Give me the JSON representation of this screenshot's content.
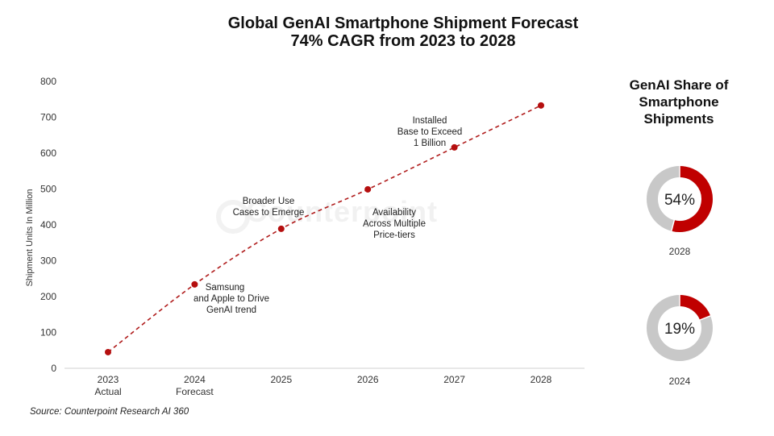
{
  "title_line1": "Global GenAI Smartphone Shipment Forecast",
  "title_line2": "74% CAGR from 2023 to 2028",
  "watermark": "Counterpoint",
  "source": "Source: Counterpoint Research AI 360",
  "colors": {
    "accent": "#c00000",
    "ring_bg": "#c8c8c8",
    "axis": "#d9d9d9"
  },
  "chart_data": [
    {
      "type": "line",
      "title": "Global GenAI Smartphone Shipment Forecast — 74% CAGR from 2023 to 2028",
      "xlabel": "",
      "ylabel": "Shipment Units In Million",
      "ylim": [
        0,
        800
      ],
      "yticks": [
        0,
        100,
        200,
        300,
        400,
        500,
        600,
        700,
        800
      ],
      "grid": false,
      "categories": [
        "2023",
        "2024",
        "2025",
        "2026",
        "2027",
        "2028"
      ],
      "category_sublabels": [
        "Actual",
        "Forecast",
        "",
        "",
        "",
        ""
      ],
      "series": [
        {
          "name": "GenAI Smartphone Shipments",
          "style": "dashed-with-markers",
          "values": [
            45,
            234,
            389,
            499,
            616,
            733
          ]
        }
      ],
      "annotations": [
        {
          "category": "2024",
          "lines": [
            "Samsung",
            "and Apple to Drive",
            "GenAI trend"
          ]
        },
        {
          "category": "2025",
          "lines": [
            "Broader Use",
            "Cases to Emerge"
          ]
        },
        {
          "category": "2026",
          "lines": [
            "Availability",
            "Across Multiple",
            "Price-tiers"
          ]
        },
        {
          "category": "2027",
          "lines": [
            "Installed",
            "Base to Exceed",
            "1 Billion"
          ]
        }
      ]
    },
    {
      "type": "pie",
      "variant": "donut",
      "title": "GenAI Share of Smartphone Shipments",
      "charts": [
        {
          "label": "2028",
          "value": 54,
          "display": "54%"
        },
        {
          "label": "2024",
          "value": 19,
          "display": "19%"
        }
      ]
    }
  ],
  "side_title_lines": [
    "GenAI Share of",
    "Smartphone",
    "Shipments"
  ]
}
